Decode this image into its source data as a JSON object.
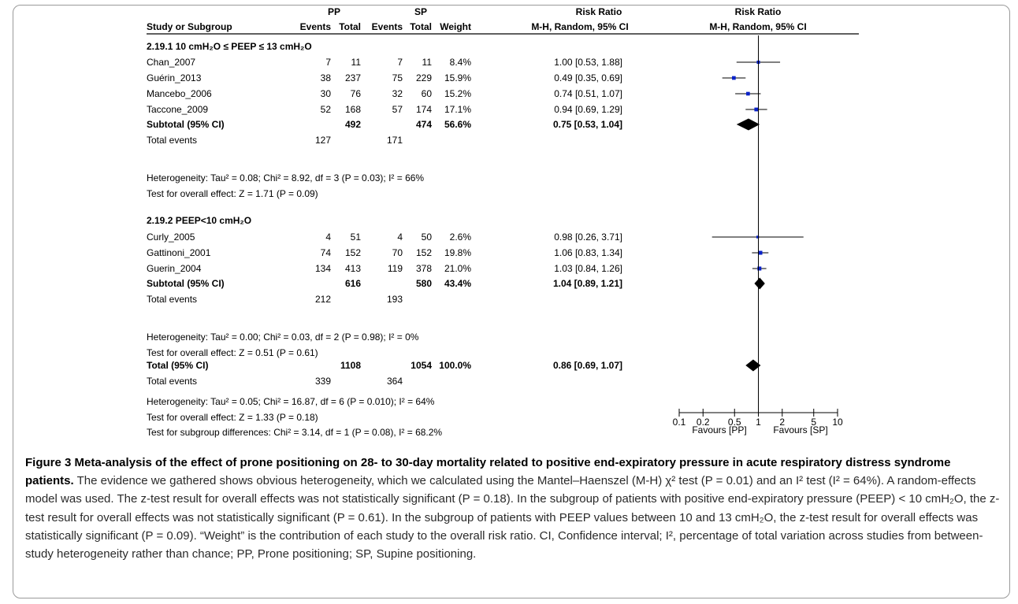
{
  "table": {
    "group_pp": "PP",
    "group_sp": "SP",
    "header_rr_left": "Risk Ratio",
    "header_rr_right": "Risk Ratio",
    "col_study": "Study or Subgroup",
    "col_events_pp": "Events",
    "col_total_pp": "Total",
    "col_events_sp": "Events",
    "col_total_sp": "Total",
    "col_weight": "Weight",
    "col_method_left": "M-H, Random, 95% CI",
    "col_method_right": "M-H, Random, 95% CI",
    "subgroup1_title": "2.19.1 10 cmH₂O ≤ PEEP ≤ 13 cmH₂O",
    "subgroup2_title": "2.19.2 PEEP<10 cmH₂O",
    "het1": "Heterogeneity: Tau² = 0.08; Chi² = 8.92, df = 3 (P = 0.03); I² = 66%",
    "test1": "Test for overall effect: Z = 1.71 (P = 0.09)",
    "het2": "Heterogeneity: Tau² = 0.00; Chi² = 0.03, df = 2 (P = 0.98); I² = 0%",
    "test2": "Test for overall effect: Z = 0.51 (P = 0.61)",
    "het_total": "Heterogeneity: Tau² = 0.05; Chi² = 16.87, df = 6 (P = 0.010); I² = 64%",
    "test_total": "Test for overall effect: Z = 1.33 (P = 0.18)",
    "test_subgroup": "Test for subgroup differences: Chi² = 3.14, df = 1 (P = 0.08), I² = 68.2%",
    "favours_left": "Favours [PP]",
    "favours_right": "Favours [SP]"
  },
  "chart_data": {
    "type": "forest",
    "x_scale": "log",
    "xlim": [
      0.1,
      10
    ],
    "x_ticks": [
      "0.1",
      "0.2",
      "0.5",
      "1",
      "2",
      "5",
      "10"
    ],
    "x_tick_values": [
      0.1,
      0.2,
      0.5,
      1,
      2,
      5,
      10
    ],
    "rows": [
      {
        "kind": "study",
        "label": "Chan_2007",
        "pp_events": "7",
        "pp_total": "11",
        "sp_events": "7",
        "sp_total": "11",
        "weight": "8.4%",
        "ci_text": "1.00 [0.53, 1.88]",
        "rr": 1.0,
        "lo": 0.53,
        "hi": 1.88
      },
      {
        "kind": "study",
        "label": "Guérin_2013",
        "pp_events": "38",
        "pp_total": "237",
        "sp_events": "75",
        "sp_total": "229",
        "weight": "15.9%",
        "ci_text": "0.49 [0.35, 0.69]",
        "rr": 0.49,
        "lo": 0.35,
        "hi": 0.69
      },
      {
        "kind": "study",
        "label": "Mancebo_2006",
        "pp_events": "30",
        "pp_total": "76",
        "sp_events": "32",
        "sp_total": "60",
        "weight": "15.2%",
        "ci_text": "0.74 [0.51, 1.07]",
        "rr": 0.74,
        "lo": 0.51,
        "hi": 1.07
      },
      {
        "kind": "study",
        "label": "Taccone_2009",
        "pp_events": "52",
        "pp_total": "168",
        "sp_events": "57",
        "sp_total": "174",
        "weight": "17.1%",
        "ci_text": "0.94 [0.69, 1.29]",
        "rr": 0.94,
        "lo": 0.69,
        "hi": 1.29
      },
      {
        "kind": "subtotal",
        "label": "Subtotal (95% CI)",
        "pp_total": "492",
        "sp_total": "474",
        "weight": "56.6%",
        "ci_text": "0.75 [0.53, 1.04]",
        "rr": 0.75,
        "lo": 0.53,
        "hi": 1.04
      },
      {
        "kind": "events",
        "label": "Total events",
        "pp_events": "127",
        "sp_events": "171"
      },
      {
        "kind": "study",
        "label": "Curly_2005",
        "pp_events": "4",
        "pp_total": "51",
        "sp_events": "4",
        "sp_total": "50",
        "weight": "2.6%",
        "ci_text": "0.98 [0.26, 3.71]",
        "rr": 0.98,
        "lo": 0.26,
        "hi": 3.71
      },
      {
        "kind": "study",
        "label": "Gattinoni_2001",
        "pp_events": "74",
        "pp_total": "152",
        "sp_events": "70",
        "sp_total": "152",
        "weight": "19.8%",
        "ci_text": "1.06 [0.83, 1.34]",
        "rr": 1.06,
        "lo": 0.83,
        "hi": 1.34
      },
      {
        "kind": "study",
        "label": "Guerin_2004",
        "pp_events": "134",
        "pp_total": "413",
        "sp_events": "119",
        "sp_total": "378",
        "weight": "21.0%",
        "ci_text": "1.03 [0.84, 1.26]",
        "rr": 1.03,
        "lo": 0.84,
        "hi": 1.26
      },
      {
        "kind": "subtotal",
        "label": "Subtotal (95% CI)",
        "pp_total": "616",
        "sp_total": "580",
        "weight": "43.4%",
        "ci_text": "1.04 [0.89, 1.21]",
        "rr": 1.04,
        "lo": 0.89,
        "hi": 1.21
      },
      {
        "kind": "events",
        "label": "Total events",
        "pp_events": "212",
        "sp_events": "193"
      },
      {
        "kind": "subtotal",
        "label": "Total (95% CI)",
        "pp_total": "1108",
        "sp_total": "1054",
        "weight": "100.0%",
        "ci_text": "0.86 [0.69, 1.07]",
        "rr": 0.86,
        "lo": 0.69,
        "hi": 1.07
      },
      {
        "kind": "events",
        "label": "Total events",
        "pp_events": "339",
        "sp_events": "364"
      }
    ]
  },
  "caption": {
    "title": "Figure 3 Meta-analysis of the effect of prone positioning on 28- to 30-day mortality related to positive end-expiratory pressure in acute respiratory distress syndrome patients.",
    "body": " The evidence we gathered shows obvious heterogeneity, which we calculated using the Mantel–Haenszel (M-H) χ² test (P = 0.01) and an I² test (I² = 64%). A random-effects model was used. The z-test result for overall effects was not statistically significant (P = 0.18). In the subgroup of patients with positive end-expiratory pressure (PEEP) < 10 cmH₂O, the z-test result for overall effects was not statistically significant (P = 0.61). In the subgroup of patients with PEEP values between 10 and 13 cmH₂O, the z-test result for overall effects was statistically significant (P = 0.09). “Weight” is the contribution of each study to the overall risk ratio. CI, Confidence interval; I², percentage of total variation across studies from between-study heterogeneity rather than chance; PP, Prone positioning; SP, Supine positioning."
  }
}
